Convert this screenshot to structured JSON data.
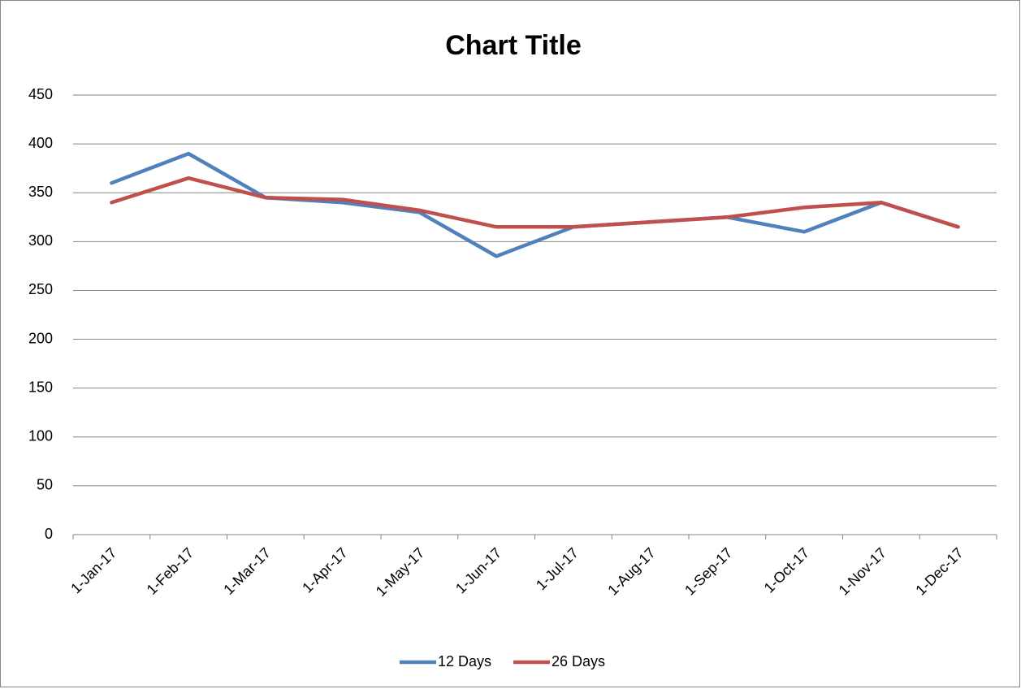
{
  "chart_data": {
    "type": "line",
    "title": "Chart Title",
    "categories": [
      "1-Jan-17",
      "1-Feb-17",
      "1-Mar-17",
      "1-Apr-17",
      "1-May-17",
      "1-Jun-17",
      "1-Jul-17",
      "1-Aug-17",
      "1-Sep-17",
      "1-Oct-17",
      "1-Nov-17",
      "1-Dec-17"
    ],
    "series": [
      {
        "name": "12 Days",
        "color": "#4f81bd",
        "values": [
          360,
          390,
          345,
          340,
          330,
          285,
          315,
          320,
          325,
          310,
          340,
          315
        ]
      },
      {
        "name": "26 Days",
        "color": "#c0504d",
        "values": [
          340,
          365,
          345,
          343,
          332,
          315,
          315,
          320,
          325,
          335,
          340,
          315
        ]
      }
    ],
    "ylim": [
      0,
      450
    ],
    "yticks": [
      0,
      50,
      100,
      150,
      200,
      250,
      300,
      350,
      400,
      450
    ],
    "grid": true,
    "legend": "bottom"
  }
}
